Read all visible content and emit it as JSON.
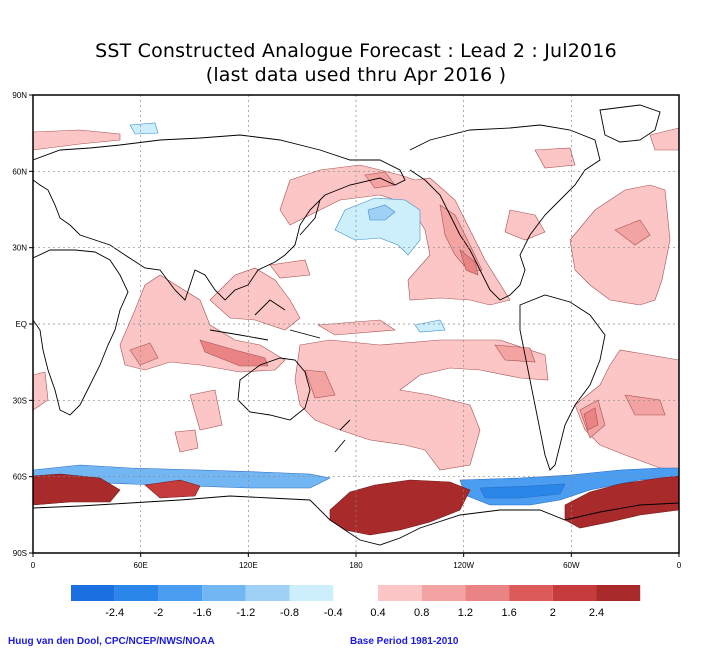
{
  "title": {
    "line1": "SST Constructed Analogue Forecast : Lead 2 : Jul2016",
    "line2": "(last data used thru Apr 2016 )"
  },
  "map": {
    "x_ticks": [
      "0",
      "60E",
      "120E",
      "180",
      "120W",
      "60W",
      "0"
    ],
    "y_ticks": [
      "90N",
      "60N",
      "30N",
      "EQ",
      "30S",
      "60S",
      "90S"
    ],
    "grid_style": "dotted"
  },
  "colorbar": {
    "negative_colors": [
      "#1c6fe0",
      "#2b86ea",
      "#4a9df0",
      "#72b6f4",
      "#9fd0f6",
      "#cdeffc"
    ],
    "positive_colors": [
      "#fcc6c6",
      "#f4a3a3",
      "#ea8484",
      "#dc5a5a",
      "#c63b3b",
      "#a82a2a"
    ],
    "negative_labels": [
      "-2.4",
      "-2",
      "-1.6",
      "-1.2",
      "-0.8",
      "-0.4"
    ],
    "positive_labels": [
      "0.4",
      "0.8",
      "1.2",
      "1.6",
      "2",
      "2.4"
    ]
  },
  "footer": {
    "credit": "Huug van den Dool, CPC/NCEP/NWS/NOAA",
    "base_period": "Base Period 1981-2010"
  }
}
